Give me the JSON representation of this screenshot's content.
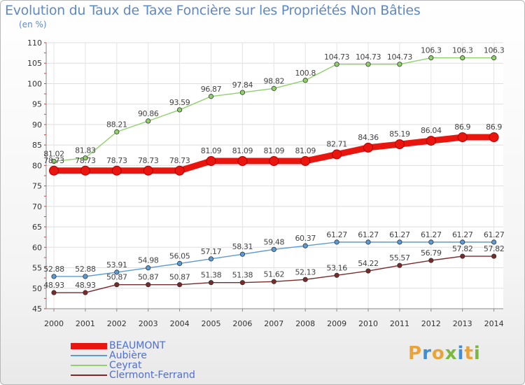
{
  "title": "Evolution du Taux de Taxe Foncière sur les Propriétés Non Bâties",
  "unit_label": "(en %)",
  "logo": {
    "letters": [
      "P",
      "r",
      "o",
      "x",
      "i",
      "t",
      "i"
    ],
    "colors": [
      "#e8a33a",
      "#3d8fd6",
      "#e8a33a",
      "#7ab93d",
      "#3d8fd6",
      "#e8a33a",
      "#7ab93d"
    ]
  },
  "chart_data": {
    "type": "line",
    "x": [
      "2000",
      "2001",
      "2002",
      "2003",
      "2004",
      "2005",
      "2006",
      "2007",
      "2008",
      "2009",
      "2010",
      "2011",
      "2012",
      "2013",
      "2014"
    ],
    "ylim": [
      45,
      110
    ],
    "yticks": [
      "45",
      "50",
      "55",
      "60",
      "65",
      "70",
      "75",
      "80",
      "85",
      "90",
      "95",
      "100",
      "105",
      "110"
    ],
    "grid": true,
    "legend_position": "bottom-left",
    "series": [
      {
        "name": "BEAUMONT",
        "color": "#e8160e",
        "values": [
          78.73,
          78.73,
          78.73,
          78.73,
          78.73,
          81.09,
          81.09,
          81.09,
          81.09,
          82.71,
          84.36,
          85.19,
          86.04,
          86.9,
          86.9
        ],
        "labels": [
          "78.73",
          "78.73",
          "78.73",
          "78.73",
          "78.73",
          "81.09",
          "81.09",
          "81.09",
          "81.09",
          "82.71",
          "84.36",
          "85.19",
          "86.04",
          "86.9",
          "86.9"
        ]
      },
      {
        "name": "Aubière",
        "color": "#5b9bd5",
        "values": [
          52.88,
          52.88,
          53.91,
          54.98,
          56.05,
          57.17,
          58.31,
          59.48,
          60.37,
          61.27,
          61.27,
          61.27,
          61.27,
          61.27,
          61.27
        ],
        "labels": [
          "52.88",
          "52.88",
          "53.91",
          "54.98",
          "56.05",
          "57.17",
          "58.31",
          "59.48",
          "60.37",
          "61.27",
          "61.27",
          "61.27",
          "61.27",
          "61.27",
          "61.27"
        ]
      },
      {
        "name": "Ceyrat",
        "color": "#8fd16a",
        "values": [
          81.02,
          81.83,
          88.21,
          90.86,
          93.59,
          96.87,
          97.84,
          98.82,
          100.8,
          104.73,
          104.73,
          104.73,
          106.3,
          106.3,
          106.3
        ],
        "labels": [
          "81.02",
          "81.83",
          "88.21",
          "90.86",
          "93.59",
          "96.87",
          "97.84",
          "98.82",
          "100.8",
          "104.73",
          "104.73",
          "104.73",
          "106.3",
          "106.3",
          "106.3"
        ]
      },
      {
        "name": "Clermont-Ferrand",
        "color": "#7a2a2a",
        "values": [
          48.93,
          48.93,
          50.87,
          50.87,
          50.87,
          51.38,
          51.38,
          51.62,
          52.13,
          53.16,
          54.22,
          55.57,
          56.79,
          57.82,
          57.82
        ],
        "labels": [
          "48.93",
          "48.93",
          "50.87",
          "50.87",
          "50.87",
          "51.38",
          "51.38",
          "51.62",
          "52.13",
          "53.16",
          "54.22",
          "55.57",
          "56.79",
          "57.82",
          "57.82"
        ]
      }
    ]
  }
}
